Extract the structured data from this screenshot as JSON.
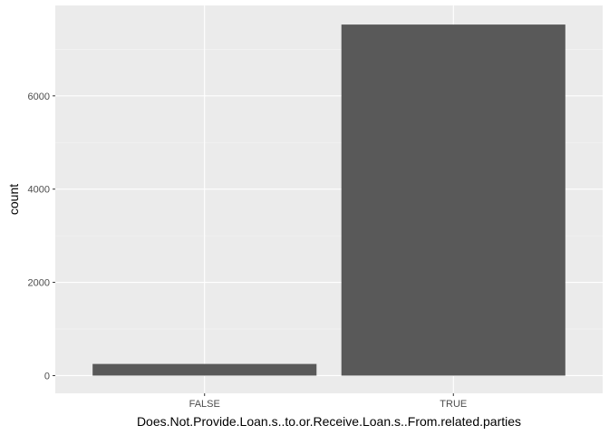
{
  "chart_data": {
    "type": "bar",
    "categories": [
      "FALSE",
      "TRUE"
    ],
    "values": [
      250,
      7530
    ],
    "title": "",
    "xlabel": "Does.Not.Provide.Loan.s..to.or.Receive.Loan.s..From.related.parties",
    "ylabel": "count",
    "ylim": [
      -380,
      7940
    ],
    "yticks": [
      0,
      2000,
      4000,
      6000
    ],
    "yticks_labels": [
      "0",
      "2000",
      "4000",
      "6000"
    ],
    "y_minor_ticks": [
      1000,
      3000,
      5000,
      7000
    ],
    "grid": true,
    "legend": "none",
    "colors": {
      "panel_background": "#ebebeb",
      "grid_major": "#ffffff",
      "grid_minor": "#f5f5f5",
      "bar_fill": "#595959",
      "tick_mark": "#333333",
      "tick_label": "#4d4d4d",
      "axis_title": "#000000"
    }
  }
}
